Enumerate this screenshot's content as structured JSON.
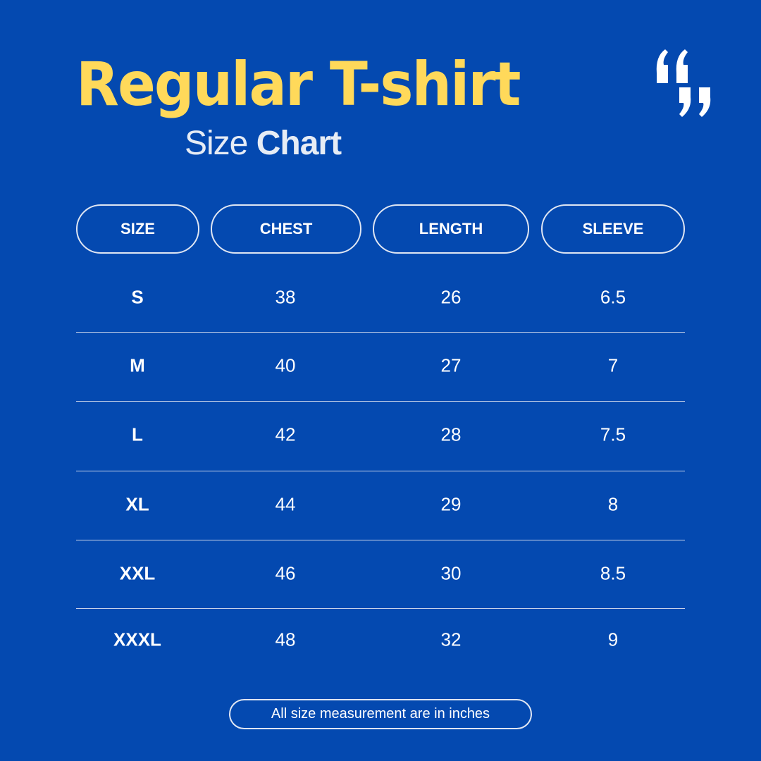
{
  "title": "Regular T-shirt",
  "subtitle": {
    "light": "Size",
    "bold": "Chart"
  },
  "colors": {
    "background": "#0449b0",
    "title": "#ffd95a",
    "text": "#ffffff"
  },
  "icon": "quote-marks-icon",
  "headers": [
    "SIZE",
    "CHEST",
    "LENGTH",
    "SLEEVE"
  ],
  "rows": [
    [
      "S",
      "38",
      "26",
      "6.5"
    ],
    [
      "M",
      "40",
      "27",
      "7"
    ],
    [
      "L",
      "42",
      "28",
      "7.5"
    ],
    [
      "XL",
      "44",
      "29",
      "8"
    ],
    [
      "XXL",
      "46",
      "30",
      "8.5"
    ],
    [
      "XXXL",
      "48",
      "32",
      "9"
    ]
  ],
  "footer": "All size measurement are in inches"
}
